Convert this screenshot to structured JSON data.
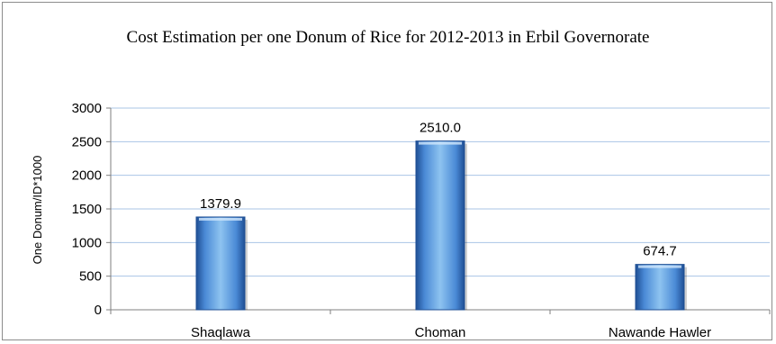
{
  "chart_data": {
    "type": "bar",
    "title": "Cost Estimation per one Donum of Rice for 2012-2013 in Erbil Governorate",
    "xlabel": "",
    "ylabel": "One Donum/ID*1000",
    "categories": [
      "Shaqlawa",
      "Choman",
      "Nawande Hawler"
    ],
    "values": [
      1379.9,
      2510.0,
      674.7
    ],
    "data_labels": [
      "1379.9",
      "2510.0",
      "674.7"
    ],
    "ylim": [
      0,
      3000
    ],
    "yticks": [
      0,
      500,
      1000,
      1500,
      2000,
      2500,
      3000
    ],
    "grid": true,
    "legend": "none",
    "colors": {
      "bar_light": "#8ec3f0",
      "bar_mid": "#4a8ad6",
      "bar_dark": "#1f4f94",
      "grid": "#a9c4e6",
      "axis": "#7f7f7f"
    }
  }
}
